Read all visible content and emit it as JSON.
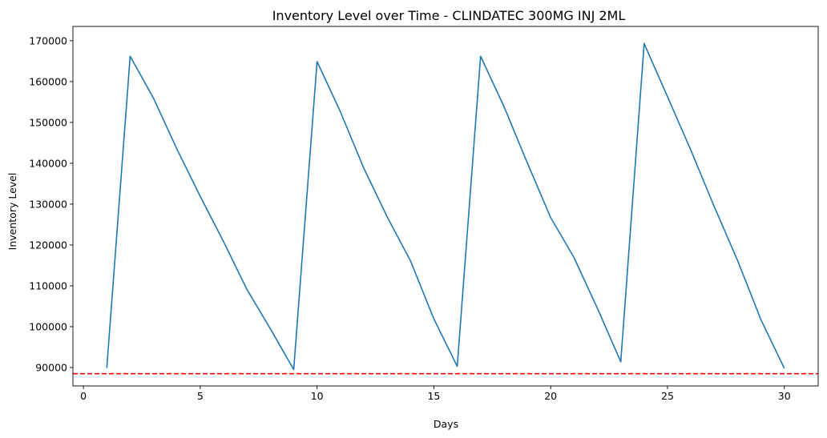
{
  "chart_data": {
    "type": "line",
    "title": "Inventory Level over Time - CLINDATEC 300MG INJ 2ML",
    "xlabel": "Days",
    "ylabel": "Inventory Level",
    "xlim": [
      -0.45,
      31.45
    ],
    "ylim": [
      85490,
      173500
    ],
    "xticks": [
      0,
      5,
      10,
      15,
      20,
      25,
      30
    ],
    "yticks": [
      90000,
      100000,
      110000,
      120000,
      130000,
      140000,
      150000,
      160000,
      170000
    ],
    "grid": false,
    "series": [
      {
        "color": "#1f77b4",
        "x": [
          1,
          2,
          3,
          4,
          5,
          6,
          7,
          8,
          9,
          10,
          11,
          12,
          13,
          14,
          15,
          16,
          17,
          18,
          19,
          20,
          21,
          22,
          23,
          24,
          25,
          26,
          27,
          28,
          29,
          30
        ],
        "y": [
          89900,
          166200,
          155900,
          143500,
          131900,
          120800,
          109100,
          99500,
          89500,
          164900,
          152600,
          138800,
          126900,
          116100,
          101900,
          90300,
          166200,
          153900,
          140100,
          126700,
          116900,
          104500,
          91400,
          169300,
          156300,
          143200,
          129400,
          116200,
          101700,
          89800
        ]
      }
    ],
    "reference_line": {
      "y": 88500,
      "color": "#ff0000",
      "style": "dashed"
    }
  }
}
